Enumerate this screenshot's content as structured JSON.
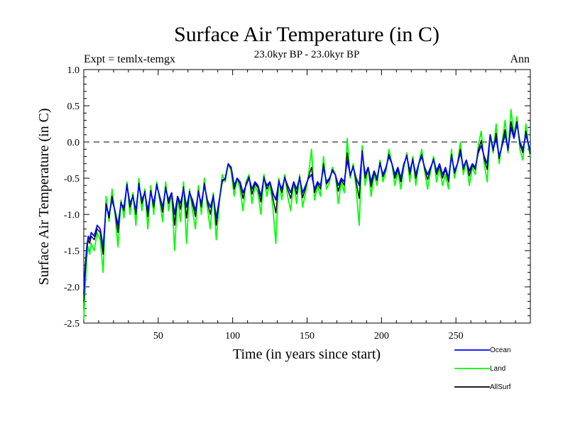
{
  "chart_data": {
    "type": "line",
    "title": "Surface Air Temperature (in C)",
    "subtitle": "23.0kyr BP - 23.0kyr BP",
    "left_label": "Expt = temlx-temgx",
    "right_label": "Ann",
    "xlabel": "Time (in years since start)",
    "ylabel": "Surface Air Temperature (in C)",
    "xlim": [
      0,
      300
    ],
    "ylim": [
      -2.5,
      1.0
    ],
    "x_ticks": [
      50,
      100,
      150,
      200,
      250
    ],
    "x_tick_labels": [
      "50",
      "100",
      "150",
      "200",
      "250"
    ],
    "y_ticks": [
      -2.5,
      -2.0,
      -1.5,
      -1.0,
      -0.5,
      0.0,
      0.5,
      1.0
    ],
    "y_tick_labels": [
      "-2.5",
      "-2.0",
      "-1.5",
      "-1.0",
      "-0.5",
      "0.0",
      "0.5",
      "1.0"
    ],
    "reference_line": 0.0,
    "legend_position": "bottom-right",
    "series": [
      {
        "name": "Ocean",
        "color": "#0000ff",
        "x": [
          0,
          1,
          2,
          3,
          4,
          5,
          7,
          9,
          11,
          13,
          15,
          17,
          19,
          21,
          23,
          25,
          27,
          29,
          31,
          33,
          35,
          37,
          39,
          41,
          43,
          45,
          47,
          49,
          51,
          53,
          55,
          57,
          59,
          61,
          63,
          65,
          67,
          69,
          71,
          73,
          75,
          77,
          79,
          81,
          83,
          85,
          87,
          89,
          91,
          93,
          95,
          97,
          99,
          101,
          103,
          105,
          107,
          109,
          111,
          113,
          115,
          117,
          119,
          121,
          123,
          125,
          127,
          129,
          131,
          133,
          135,
          137,
          139,
          141,
          143,
          145,
          147,
          149,
          151,
          153,
          155,
          157,
          159,
          161,
          163,
          165,
          167,
          169,
          171,
          173,
          175,
          177,
          179,
          181,
          183,
          185,
          187,
          189,
          191,
          193,
          195,
          197,
          199,
          201,
          203,
          205,
          207,
          209,
          211,
          213,
          215,
          217,
          219,
          221,
          223,
          225,
          227,
          229,
          231,
          233,
          235,
          237,
          239,
          241,
          243,
          245,
          247,
          249,
          251,
          253,
          255,
          257,
          259,
          261,
          263,
          265,
          267,
          269,
          271,
          273,
          275,
          277,
          279,
          281,
          283,
          285,
          287,
          289,
          291,
          293,
          295,
          297,
          299,
          300
        ],
        "values": [
          -2.1,
          -1.7,
          -1.45,
          -1.3,
          -1.35,
          -1.25,
          -1.3,
          -1.15,
          -1.2,
          -1.45,
          -0.9,
          -1.0,
          -0.8,
          -0.95,
          -1.15,
          -0.85,
          -0.9,
          -0.6,
          -0.85,
          -0.75,
          -0.95,
          -0.6,
          -0.8,
          -0.7,
          -0.95,
          -0.7,
          -0.85,
          -0.6,
          -0.75,
          -0.9,
          -0.65,
          -0.8,
          -0.7,
          -1.0,
          -0.75,
          -0.85,
          -0.65,
          -0.9,
          -0.7,
          -0.8,
          -0.95,
          -0.7,
          -0.85,
          -0.6,
          -0.8,
          -0.9,
          -0.75,
          -1.05,
          -0.8,
          -0.55,
          -0.5,
          -0.3,
          -0.35,
          -0.6,
          -0.5,
          -0.55,
          -0.7,
          -0.6,
          -0.5,
          -0.65,
          -0.55,
          -0.6,
          -0.75,
          -0.5,
          -0.6,
          -0.55,
          -0.7,
          -0.8,
          -0.55,
          -0.65,
          -0.5,
          -0.6,
          -0.7,
          -0.55,
          -0.65,
          -0.5,
          -0.7,
          -0.6,
          -0.5,
          -0.45,
          -0.65,
          -0.55,
          -0.6,
          -0.35,
          -0.55,
          -0.5,
          -0.4,
          -0.45,
          -0.6,
          -0.5,
          -0.55,
          -0.25,
          -0.45,
          -0.35,
          -0.5,
          -0.6,
          -0.15,
          -0.45,
          -0.35,
          -0.55,
          -0.4,
          -0.5,
          -0.3,
          -0.45,
          -0.35,
          -0.2,
          -0.3,
          -0.45,
          -0.35,
          -0.5,
          -0.3,
          -0.2,
          -0.4,
          -0.25,
          -0.45,
          -0.3,
          -0.2,
          -0.35,
          -0.45,
          -0.35,
          -0.25,
          -0.4,
          -0.3,
          -0.45,
          -0.35,
          -0.5,
          -0.2,
          -0.4,
          -0.3,
          -0.15,
          -0.35,
          -0.25,
          -0.4,
          -0.3,
          -0.35,
          -0.15,
          -0.05,
          -0.2,
          -0.3,
          0.1,
          -0.1,
          0.05,
          -0.2,
          -0.05,
          0.1,
          -0.1,
          0.2,
          0.05,
          0.25,
          0.0,
          -0.1,
          0.1,
          -0.05,
          -0.15
        ]
      },
      {
        "name": "Land",
        "color": "#00ff00",
        "x": [
          0,
          1,
          2,
          3,
          4,
          5,
          7,
          9,
          11,
          13,
          15,
          17,
          19,
          21,
          23,
          25,
          27,
          29,
          31,
          33,
          35,
          37,
          39,
          41,
          43,
          45,
          47,
          49,
          51,
          53,
          55,
          57,
          59,
          61,
          63,
          65,
          67,
          69,
          71,
          73,
          75,
          77,
          79,
          81,
          83,
          85,
          87,
          89,
          91,
          93,
          95,
          97,
          99,
          101,
          103,
          105,
          107,
          109,
          111,
          113,
          115,
          117,
          119,
          121,
          123,
          125,
          127,
          129,
          131,
          133,
          135,
          137,
          139,
          141,
          143,
          145,
          147,
          149,
          151,
          153,
          155,
          157,
          159,
          161,
          163,
          165,
          167,
          169,
          171,
          173,
          175,
          177,
          179,
          181,
          183,
          185,
          187,
          189,
          191,
          193,
          195,
          197,
          199,
          201,
          203,
          205,
          207,
          209,
          211,
          213,
          215,
          217,
          219,
          221,
          223,
          225,
          227,
          229,
          231,
          233,
          235,
          237,
          239,
          241,
          243,
          245,
          247,
          249,
          251,
          253,
          255,
          257,
          259,
          261,
          263,
          265,
          267,
          269,
          271,
          273,
          275,
          277,
          279,
          281,
          283,
          285,
          287,
          289,
          291,
          293,
          295,
          297,
          299,
          300
        ],
        "values": [
          -2.45,
          -2.0,
          -1.6,
          -1.45,
          -1.55,
          -1.4,
          -1.5,
          -1.25,
          -1.35,
          -1.8,
          -0.75,
          -1.1,
          -0.65,
          -1.0,
          -1.45,
          -0.8,
          -1.05,
          -0.55,
          -1.0,
          -0.7,
          -1.15,
          -0.5,
          -0.95,
          -0.65,
          -1.2,
          -0.6,
          -1.0,
          -0.55,
          -0.8,
          -1.1,
          -0.55,
          -0.95,
          -0.7,
          -1.5,
          -0.75,
          -1.1,
          -0.55,
          -1.4,
          -0.65,
          -0.95,
          -1.2,
          -0.6,
          -1.0,
          -0.5,
          -0.9,
          -1.2,
          -0.7,
          -1.35,
          -0.85,
          -0.45,
          -0.55,
          -0.3,
          -0.4,
          -0.75,
          -0.5,
          -0.65,
          -0.95,
          -0.55,
          -0.45,
          -0.85,
          -0.6,
          -0.7,
          -1.0,
          -0.45,
          -0.75,
          -0.55,
          -0.9,
          -1.4,
          -0.5,
          -0.8,
          -0.45,
          -0.75,
          -0.95,
          -0.55,
          -0.85,
          -0.45,
          -0.9,
          -0.7,
          -0.45,
          -0.1,
          -0.8,
          -0.6,
          -0.75,
          -0.2,
          -0.65,
          -0.55,
          -0.35,
          -0.45,
          -0.85,
          -0.55,
          -0.7,
          0.05,
          -0.5,
          -0.3,
          -0.65,
          -1.15,
          -0.05,
          -0.6,
          -0.35,
          -0.75,
          -0.45,
          -0.6,
          -0.25,
          -0.55,
          -0.4,
          -0.1,
          -0.3,
          -0.6,
          -0.4,
          -0.65,
          -0.35,
          -0.15,
          -0.55,
          -0.2,
          -0.6,
          -0.3,
          -0.1,
          -0.4,
          -0.65,
          -0.4,
          -0.2,
          -0.55,
          -0.35,
          -0.6,
          -0.45,
          -0.65,
          -0.1,
          -0.5,
          -0.3,
          0.0,
          -0.45,
          -0.25,
          -0.6,
          -0.35,
          -0.45,
          -0.05,
          0.15,
          -0.3,
          -0.55,
          0.1,
          -0.15,
          0.25,
          -0.3,
          0.0,
          0.3,
          -0.15,
          0.45,
          0.1,
          0.35,
          -0.1,
          -0.25,
          0.25,
          -0.1,
          -0.2
        ]
      },
      {
        "name": "AllSurf",
        "color": "#000000",
        "x": [
          0,
          1,
          2,
          3,
          4,
          5,
          7,
          9,
          11,
          13,
          15,
          17,
          19,
          21,
          23,
          25,
          27,
          29,
          31,
          33,
          35,
          37,
          39,
          41,
          43,
          45,
          47,
          49,
          51,
          53,
          55,
          57,
          59,
          61,
          63,
          65,
          67,
          69,
          71,
          73,
          75,
          77,
          79,
          81,
          83,
          85,
          87,
          89,
          91,
          93,
          95,
          97,
          99,
          101,
          103,
          105,
          107,
          109,
          111,
          113,
          115,
          117,
          119,
          121,
          123,
          125,
          127,
          129,
          131,
          133,
          135,
          137,
          139,
          141,
          143,
          145,
          147,
          149,
          151,
          153,
          155,
          157,
          159,
          161,
          163,
          165,
          167,
          169,
          171,
          173,
          175,
          177,
          179,
          181,
          183,
          185,
          187,
          189,
          191,
          193,
          195,
          197,
          199,
          201,
          203,
          205,
          207,
          209,
          211,
          213,
          215,
          217,
          219,
          221,
          223,
          225,
          227,
          229,
          231,
          233,
          235,
          237,
          239,
          241,
          243,
          245,
          247,
          249,
          251,
          253,
          255,
          257,
          259,
          261,
          263,
          265,
          267,
          269,
          271,
          273,
          275,
          277,
          279,
          281,
          283,
          285,
          287,
          289,
          291,
          293,
          295,
          297,
          299,
          300
        ],
        "values": [
          -2.2,
          -1.8,
          -1.5,
          -1.35,
          -1.4,
          -1.3,
          -1.35,
          -1.2,
          -1.25,
          -1.55,
          -0.85,
          -1.05,
          -0.75,
          -0.97,
          -1.25,
          -0.83,
          -0.95,
          -0.58,
          -0.9,
          -0.73,
          -1.0,
          -0.57,
          -0.85,
          -0.68,
          -1.03,
          -0.67,
          -0.9,
          -0.58,
          -0.77,
          -0.97,
          -0.62,
          -0.85,
          -0.7,
          -1.15,
          -0.75,
          -0.93,
          -0.62,
          -1.05,
          -0.68,
          -0.85,
          -1.03,
          -0.67,
          -0.9,
          -0.57,
          -0.83,
          -1.0,
          -0.73,
          -1.15,
          -0.82,
          -0.52,
          -0.52,
          -0.3,
          -0.37,
          -0.65,
          -0.5,
          -0.58,
          -0.78,
          -0.58,
          -0.48,
          -0.72,
          -0.57,
          -0.63,
          -0.83,
          -0.48,
          -0.65,
          -0.55,
          -0.77,
          -0.98,
          -0.53,
          -0.7,
          -0.48,
          -0.65,
          -0.78,
          -0.55,
          -0.72,
          -0.48,
          -0.77,
          -0.63,
          -0.48,
          -0.35,
          -0.7,
          -0.57,
          -0.65,
          -0.3,
          -0.58,
          -0.52,
          -0.38,
          -0.45,
          -0.68,
          -0.52,
          -0.6,
          -0.15,
          -0.47,
          -0.33,
          -0.55,
          -0.78,
          -0.12,
          -0.5,
          -0.35,
          -0.62,
          -0.42,
          -0.53,
          -0.28,
          -0.48,
          -0.37,
          -0.17,
          -0.3,
          -0.5,
          -0.37,
          -0.55,
          -0.32,
          -0.18,
          -0.45,
          -0.23,
          -0.5,
          -0.3,
          -0.17,
          -0.37,
          -0.52,
          -0.37,
          -0.23,
          -0.45,
          -0.32,
          -0.5,
          -0.38,
          -0.55,
          -0.17,
          -0.43,
          -0.3,
          -0.1,
          -0.38,
          -0.25,
          -0.47,
          -0.32,
          -0.38,
          -0.12,
          0.02,
          -0.23,
          -0.38,
          0.1,
          -0.12,
          0.12,
          -0.23,
          -0.03,
          0.17,
          -0.12,
          0.28,
          0.07,
          0.28,
          -0.03,
          -0.15,
          0.15,
          -0.07,
          -0.17
        ]
      }
    ]
  }
}
